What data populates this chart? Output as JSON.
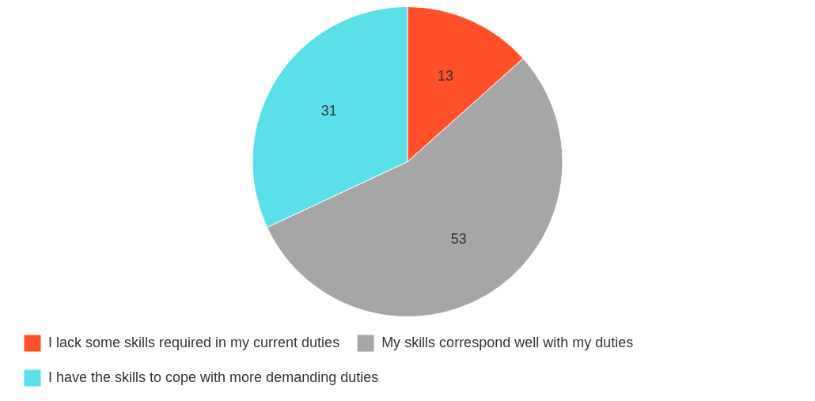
{
  "chart_data": {
    "type": "pie",
    "categories": [
      "I lack some skills required in my current duties",
      "My skills correspond well with my duties",
      "I have the skills to cope with more demanding duties"
    ],
    "values": [
      13,
      53,
      31
    ],
    "colors": [
      "#ff5029",
      "#a6a6a6",
      "#5ae0e8"
    ],
    "data_labels": true,
    "legend": "bottom"
  }
}
